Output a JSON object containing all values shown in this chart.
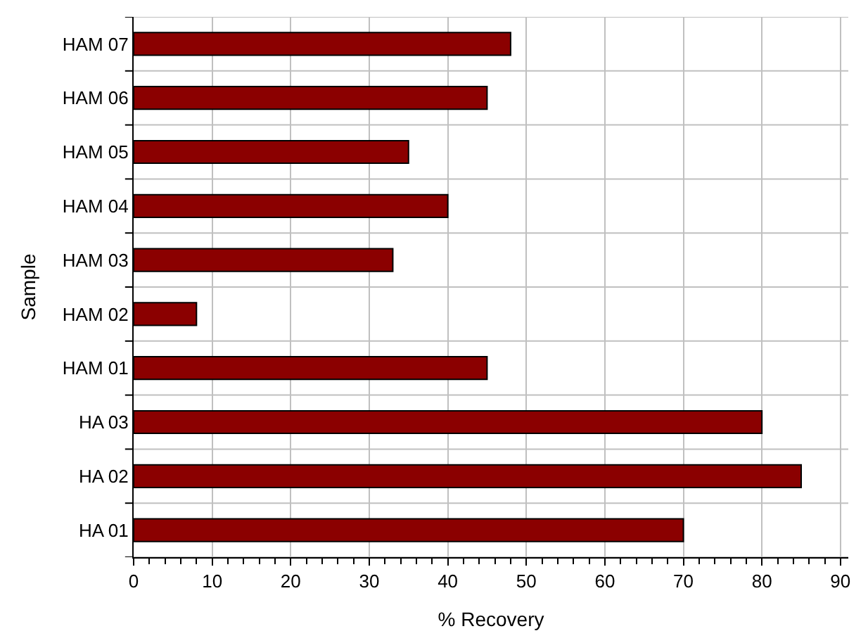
{
  "chart_data": {
    "type": "bar",
    "orientation": "horizontal",
    "xlabel": "% Recovery",
    "ylabel": "Sample",
    "categories": [
      "HAM 07",
      "HAM 06",
      "HAM 05",
      "HAM 04",
      "HAM 03",
      "HAM 02",
      "HAM 01",
      "HA 03",
      "HA 02",
      "HA 01"
    ],
    "values": [
      48,
      45,
      35,
      40,
      33,
      8,
      45,
      80,
      85,
      70
    ],
    "color": "#8b0000",
    "xlim": [
      0,
      91
    ],
    "xticks": [
      0,
      10,
      20,
      30,
      40,
      50,
      60,
      70,
      80,
      90
    ],
    "grid": true,
    "legend": false
  }
}
